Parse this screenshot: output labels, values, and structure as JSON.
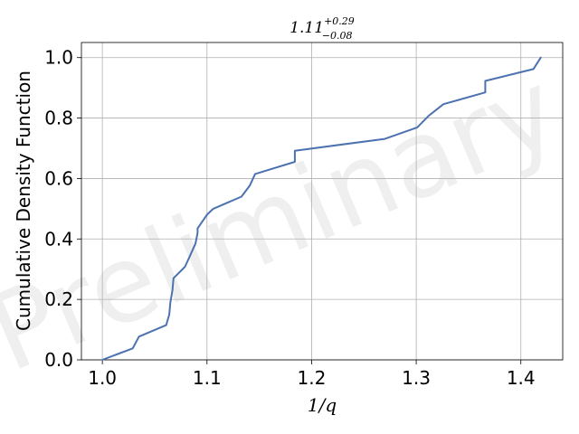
{
  "chart_data": {
    "type": "line",
    "title": {
      "base": "1.11",
      "sup": "+0.29",
      "sub": "−0.08"
    },
    "xlabel": "1/q",
    "ylabel": "Cumulative Density Function",
    "watermark": "Preliminary",
    "xlim": [
      0.98,
      1.44
    ],
    "ylim": [
      0.0,
      1.05
    ],
    "x_ticks": [
      1.0,
      1.1,
      1.2,
      1.3,
      1.4
    ],
    "x_tick_labels": [
      "1.0",
      "1.1",
      "1.2",
      "1.3",
      "1.4"
    ],
    "y_ticks": [
      0.0,
      0.2,
      0.4,
      0.6,
      0.8,
      1.0
    ],
    "y_tick_labels": [
      "0.0",
      "0.2",
      "0.4",
      "0.6",
      "0.8",
      "1.0"
    ],
    "grid": true,
    "line_color": "#4c72b0",
    "series": [
      {
        "x": [
          1.0,
          1.029,
          1.035,
          1.061,
          1.064,
          1.065,
          1.067,
          1.068,
          1.079,
          1.084,
          1.089,
          1.091,
          1.091,
          1.096,
          1.1,
          1.106,
          1.133,
          1.141,
          1.146,
          1.184,
          1.184,
          1.27,
          1.301,
          1.312,
          1.326,
          1.366,
          1.366,
          1.412,
          1.419
        ],
        "y": [
          0.0,
          0.038,
          0.077,
          0.115,
          0.15,
          0.19,
          0.23,
          0.27,
          0.308,
          0.346,
          0.385,
          0.42,
          0.435,
          0.46,
          0.48,
          0.5,
          0.54,
          0.577,
          0.615,
          0.655,
          0.692,
          0.731,
          0.769,
          0.808,
          0.846,
          0.885,
          0.923,
          0.962,
          1.0
        ]
      }
    ]
  }
}
